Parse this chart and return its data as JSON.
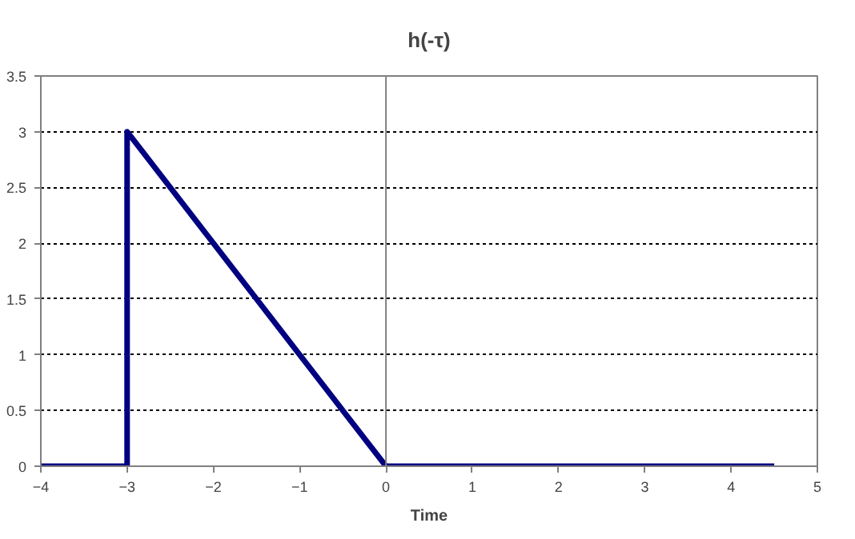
{
  "chart_data": {
    "type": "line",
    "title": "h(-τ)",
    "xlabel": "Time",
    "series": [
      {
        "color": "#000080",
        "x": [
          -4,
          -3,
          -3,
          -2.5,
          -2,
          -1.5,
          -1,
          -0.5,
          0,
          4.5
        ],
        "values": [
          0,
          0,
          3,
          2.5,
          2,
          1.5,
          1,
          0.5,
          0,
          0
        ]
      }
    ],
    "xlim": [
      -4,
      5
    ],
    "xticks": [
      -4,
      -3,
      -2,
      -1,
      0,
      1,
      2,
      3,
      4,
      5
    ],
    "ylim": [
      0,
      3.5
    ],
    "yticks": [
      0,
      0.5,
      1,
      1.5,
      2,
      2.5,
      3,
      3.5
    ],
    "grid": "y",
    "marker": "none",
    "line_style": "solid"
  }
}
